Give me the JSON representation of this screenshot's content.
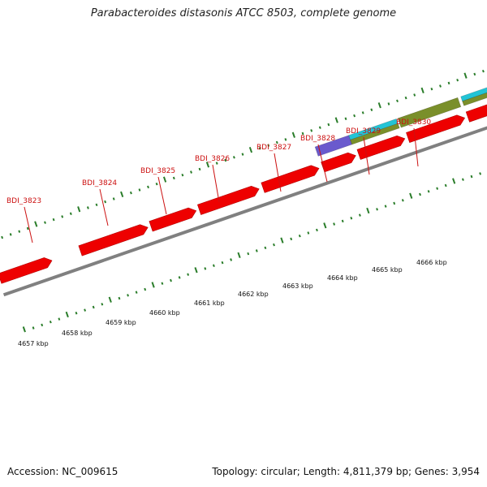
{
  "title": "Parabacteroides distasonis ATCC 8503, complete genome",
  "footer": {
    "accession": "Accession: NC_009615",
    "summary": "Topology: circular; Length: 4,811,379 bp; Genes: 3,954"
  },
  "colors": {
    "gene_red": "#ee0000",
    "backbone_gray": "#808080",
    "tick_green": "#2a7d2a",
    "label_red": "#cc1111",
    "purple": "#6a5acd",
    "cyan": "#22c4d6",
    "olive": "#7a8f2a"
  },
  "gene_labels": [
    "BDI_3823",
    "BDI_3824",
    "BDI_3825",
    "BDI_3826",
    "BDI_3827",
    "BDI_3828",
    "BDI_3829",
    "BDI_3830"
  ],
  "kbp_labels": [
    "4657 kbp",
    "4658 kbp",
    "4659 kbp",
    "4660 kbp",
    "4661 kbp",
    "4662 kbp",
    "4663 kbp",
    "4664 kbp",
    "4665 kbp",
    "4666 kbp"
  ]
}
